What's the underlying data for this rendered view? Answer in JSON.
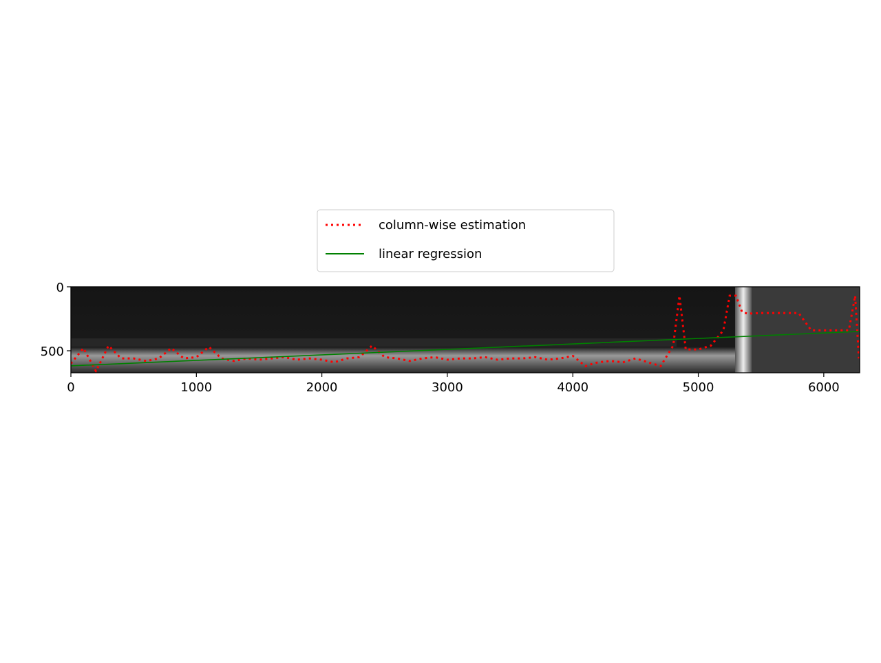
{
  "chart_data": {
    "type": "line",
    "xlim": [
      0,
      6286
    ],
    "ylim": [
      672,
      0
    ],
    "xticks": [
      0,
      1000,
      2000,
      3000,
      4000,
      5000,
      6000
    ],
    "yticks": [
      0,
      500
    ],
    "legend": "upper center outside",
    "series": [
      {
        "name": "column-wise estimation",
        "color": "#ff0000",
        "style": "dotted",
        "x": [
          0,
          100,
          200,
          300,
          400,
          500,
          600,
          700,
          800,
          900,
          1000,
          1100,
          1200,
          1300,
          1400,
          1500,
          1600,
          1700,
          1800,
          1900,
          2000,
          2100,
          2200,
          2300,
          2400,
          2500,
          2600,
          2700,
          2800,
          2900,
          3000,
          3100,
          3200,
          3300,
          3400,
          3500,
          3600,
          3700,
          3800,
          3900,
          4000,
          4100,
          4200,
          4300,
          4400,
          4500,
          4600,
          4700,
          4800,
          4850,
          4900,
          5000,
          5100,
          5200,
          5250,
          5300,
          5350,
          5400,
          5500,
          5600,
          5700,
          5800,
          5900,
          6000,
          6100,
          6200,
          6250,
          6280
        ],
        "values": [
          600,
          480,
          660,
          460,
          560,
          560,
          580,
          560,
          480,
          560,
          550,
          470,
          560,
          580,
          560,
          570,
          560,
          550,
          570,
          560,
          570,
          590,
          560,
          550,
          460,
          550,
          560,
          580,
          560,
          550,
          570,
          560,
          560,
          550,
          570,
          560,
          560,
          550,
          570,
          560,
          540,
          620,
          590,
          580,
          590,
          560,
          590,
          620,
          460,
          70,
          490,
          490,
          460,
          340,
          70,
          70,
          200,
          210,
          205,
          205,
          205,
          205,
          340,
          340,
          340,
          340,
          70,
          560
        ]
      },
      {
        "name": "linear regression",
        "color": "#008000",
        "style": "solid",
        "x": [
          0,
          6280
        ],
        "values": [
          618,
          349
        ]
      }
    ]
  }
}
